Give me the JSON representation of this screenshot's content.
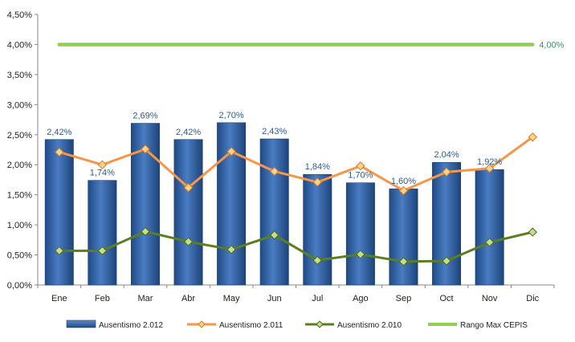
{
  "chart_data": {
    "type": "bar",
    "categories": [
      "Ene",
      "Feb",
      "Mar",
      "Abr",
      "May",
      "Jun",
      "Jul",
      "Ago",
      "Sep",
      "Oct",
      "Nov",
      "Dic"
    ],
    "ylim": [
      0,
      4.5
    ],
    "y_ticks": [
      "0,00%",
      "0,50%",
      "1,00%",
      "1,50%",
      "2,00%",
      "2,50%",
      "3,00%",
      "3,50%",
      "4,00%",
      "4,50%"
    ],
    "grid": false,
    "legend_position": "bottom",
    "series": [
      {
        "name": "Ausentismo 2.012",
        "type": "bar",
        "color": "#2f5d9f",
        "values": [
          2.42,
          1.74,
          2.69,
          2.42,
          2.7,
          2.43,
          1.84,
          1.7,
          1.6,
          2.04,
          1.92,
          null
        ],
        "labels": [
          "2,42%",
          "1,74%",
          "2,69%",
          "2,42%",
          "2,70%",
          "2,43%",
          "1,84%",
          "1,70%",
          "1,60%",
          "2,04%",
          "1,92%",
          ""
        ]
      },
      {
        "name": "Ausentismo 2.011",
        "type": "line",
        "color": "#f79646",
        "values": [
          2.21,
          2.0,
          2.26,
          1.62,
          2.22,
          1.89,
          1.71,
          1.98,
          1.57,
          1.88,
          1.94,
          2.46
        ]
      },
      {
        "name": "Ausentismo 2.010",
        "type": "line",
        "color": "#5b7f1f",
        "values": [
          0.57,
          0.57,
          0.89,
          0.72,
          0.59,
          0.83,
          0.41,
          0.51,
          0.39,
          0.4,
          0.71,
          0.88
        ]
      },
      {
        "name": "Rango Max CEPIS",
        "type": "line",
        "color": "#8fd14f",
        "values": [
          4.0,
          4.0,
          4.0,
          4.0,
          4.0,
          4.0,
          4.0,
          4.0,
          4.0,
          4.0,
          4.0,
          4.0
        ],
        "end_label": "4,00%"
      }
    ]
  }
}
